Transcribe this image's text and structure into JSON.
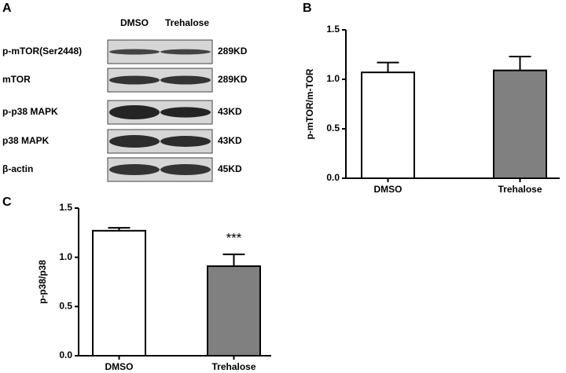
{
  "blot": {
    "panel": "A",
    "columns": [
      "DMSO",
      "Trehalose"
    ],
    "rows": [
      {
        "label": "p-mTOR(Ser2448)",
        "size": "289KD"
      },
      {
        "label": "mTOR",
        "size": "289KD"
      },
      {
        "label": "p-p38 MAPK",
        "size": "43KD"
      },
      {
        "label": "p38 MAPK",
        "size": "43KD"
      },
      {
        "label": "β-actin",
        "size": "45KD"
      }
    ]
  },
  "chart_data": [
    {
      "type": "bar",
      "panel": "B",
      "ylabel": "p-mTOR/m-TOR",
      "categories": [
        "DMSO",
        "Trehalose"
      ],
      "values": [
        1.07,
        1.09
      ],
      "errors": [
        0.1,
        0.14
      ],
      "colors": [
        "#ffffff",
        "#808080"
      ],
      "ylim": [
        0,
        1.5
      ],
      "yticks": [
        {
          "value": 0,
          "label": "0.0"
        },
        0.5,
        {
          "value": 1,
          "label": "1.0"
        },
        1.5
      ]
    },
    {
      "type": "bar",
      "panel": "C",
      "ylabel": "p-p38/p38",
      "categories": [
        "DMSO",
        "Trehalose"
      ],
      "values": [
        1.27,
        0.91
      ],
      "errors": [
        0.03,
        0.12
      ],
      "colors": [
        "#ffffff",
        "#808080"
      ],
      "annotations": [
        null,
        "***"
      ],
      "ylim": [
        0,
        1.5
      ],
      "yticks": [
        {
          "value": 0,
          "label": "0.0"
        },
        0.5,
        {
          "value": 1,
          "label": "1.0"
        },
        1.5
      ]
    }
  ]
}
